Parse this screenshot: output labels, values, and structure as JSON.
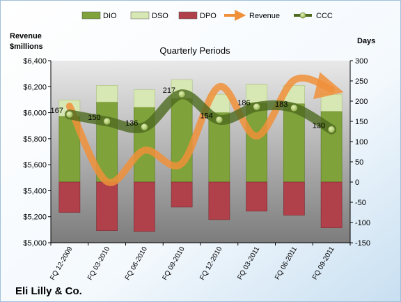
{
  "chart_data": {
    "type": "bar",
    "title": "Quarterly Periods",
    "company": "Eli Lilly & Co.",
    "y_left_label_line1": "Revenue",
    "y_left_label_line2": "$millions",
    "y_right_label": "Days",
    "ylim_left": [
      5000,
      6400
    ],
    "ylim_right": [
      -150,
      300
    ],
    "y_left_ticks": [
      "$5,000",
      "$5,200",
      "$5,400",
      "$5,600",
      "$5,800",
      "$6,000",
      "$6,200",
      "$6,400"
    ],
    "y_left_tick_values": [
      5000,
      5200,
      5400,
      5600,
      5800,
      6000,
      6200,
      6400
    ],
    "y_right_ticks": [
      "-150",
      "-100",
      "-50",
      "0",
      "50",
      "100",
      "150",
      "200",
      "250",
      "300"
    ],
    "y_right_tick_values": [
      -150,
      -100,
      -50,
      0,
      50,
      100,
      150,
      200,
      250,
      300
    ],
    "categories": [
      "FQ 12-2009",
      "FQ 03-2010",
      "FQ 06-2010",
      "FQ 09-2010",
      "FQ 12-2010",
      "FQ 03-2011",
      "FQ 06-2011",
      "FQ 09-2011"
    ],
    "series": [
      {
        "name": "DIO",
        "type": "stacked-bar",
        "color": "#7fa23a",
        "values": [
          163,
          198,
          185,
          207,
          172,
          196,
          194,
          175
        ]
      },
      {
        "name": "DSO",
        "type": "stacked-bar",
        "color": "#d8e8b4",
        "values": [
          40,
          41,
          43,
          46,
          45,
          45,
          45,
          42
        ]
      },
      {
        "name": "DPO",
        "type": "stacked-bar",
        "color": "#b0404a",
        "values": [
          -75,
          -120,
          -122,
          -62,
          -93,
          -72,
          -82,
          -113
        ]
      },
      {
        "name": "Revenue",
        "type": "line",
        "color": "#f0913a",
        "values": [
          6050,
          5470,
          5710,
          5610,
          6200,
          5820,
          6250,
          6180
        ]
      },
      {
        "name": "CCC",
        "type": "line",
        "color": "#4d6a1f",
        "values": [
          167,
          150,
          136,
          217,
          154,
          186,
          183,
          130
        ]
      }
    ],
    "ccc_labels": [
      "167",
      "150",
      "136",
      "217",
      "154",
      "186",
      "183",
      "130"
    ],
    "legend_position": "top",
    "grid": false
  }
}
